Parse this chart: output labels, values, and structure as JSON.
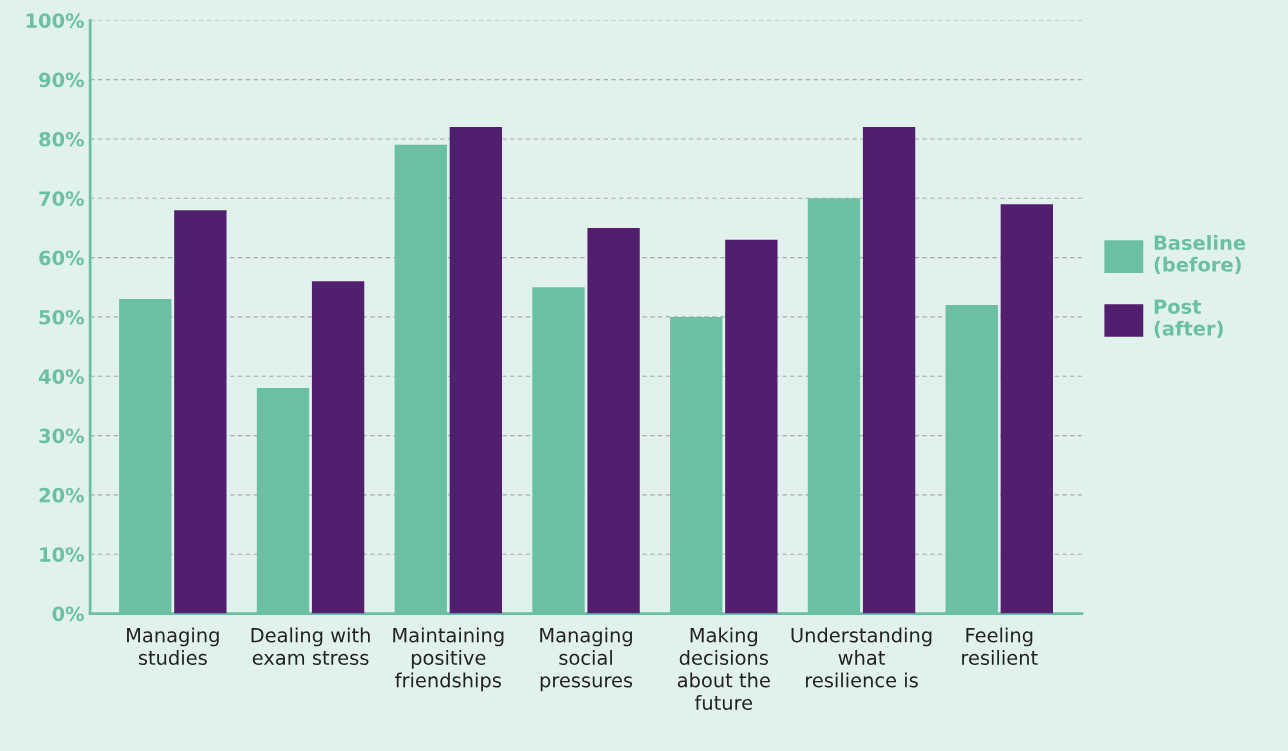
{
  "chart_data": {
    "type": "bar",
    "categories": [
      "Managing\nstudies",
      "Dealing with\nexam stress",
      "Maintaining\npositive\nfriendships",
      "Managing\nsocial\npressures",
      "Making\ndecisions\nabout the\nfuture",
      "Understanding\nwhat\nresilience is",
      "Feeling\nresilient"
    ],
    "series": [
      {
        "name": "Baseline\n(before)",
        "color": "#6abfa5",
        "values": [
          53,
          38,
          79,
          55,
          50,
          70,
          52
        ]
      },
      {
        "name": "Post\n(after)",
        "color": "#521e6e",
        "values": [
          68,
          56,
          82,
          65,
          63,
          82,
          69
        ]
      }
    ],
    "ylim": [
      0,
      100
    ],
    "yticks": [
      {
        "value": 0,
        "label": "0%"
      },
      {
        "value": 10,
        "label": "10%"
      },
      {
        "value": 20,
        "label": "20%"
      },
      {
        "value": 30,
        "label": "30%"
      },
      {
        "value": 40,
        "label": "40%"
      },
      {
        "value": 50,
        "label": "50%"
      },
      {
        "value": 60,
        "label": "60%"
      },
      {
        "value": 70,
        "label": "70%"
      },
      {
        "value": 80,
        "label": "80%"
      },
      {
        "value": 90,
        "label": "90%"
      },
      {
        "value": 100,
        "label": "100%"
      }
    ],
    "grid": "y",
    "legend": "right"
  }
}
